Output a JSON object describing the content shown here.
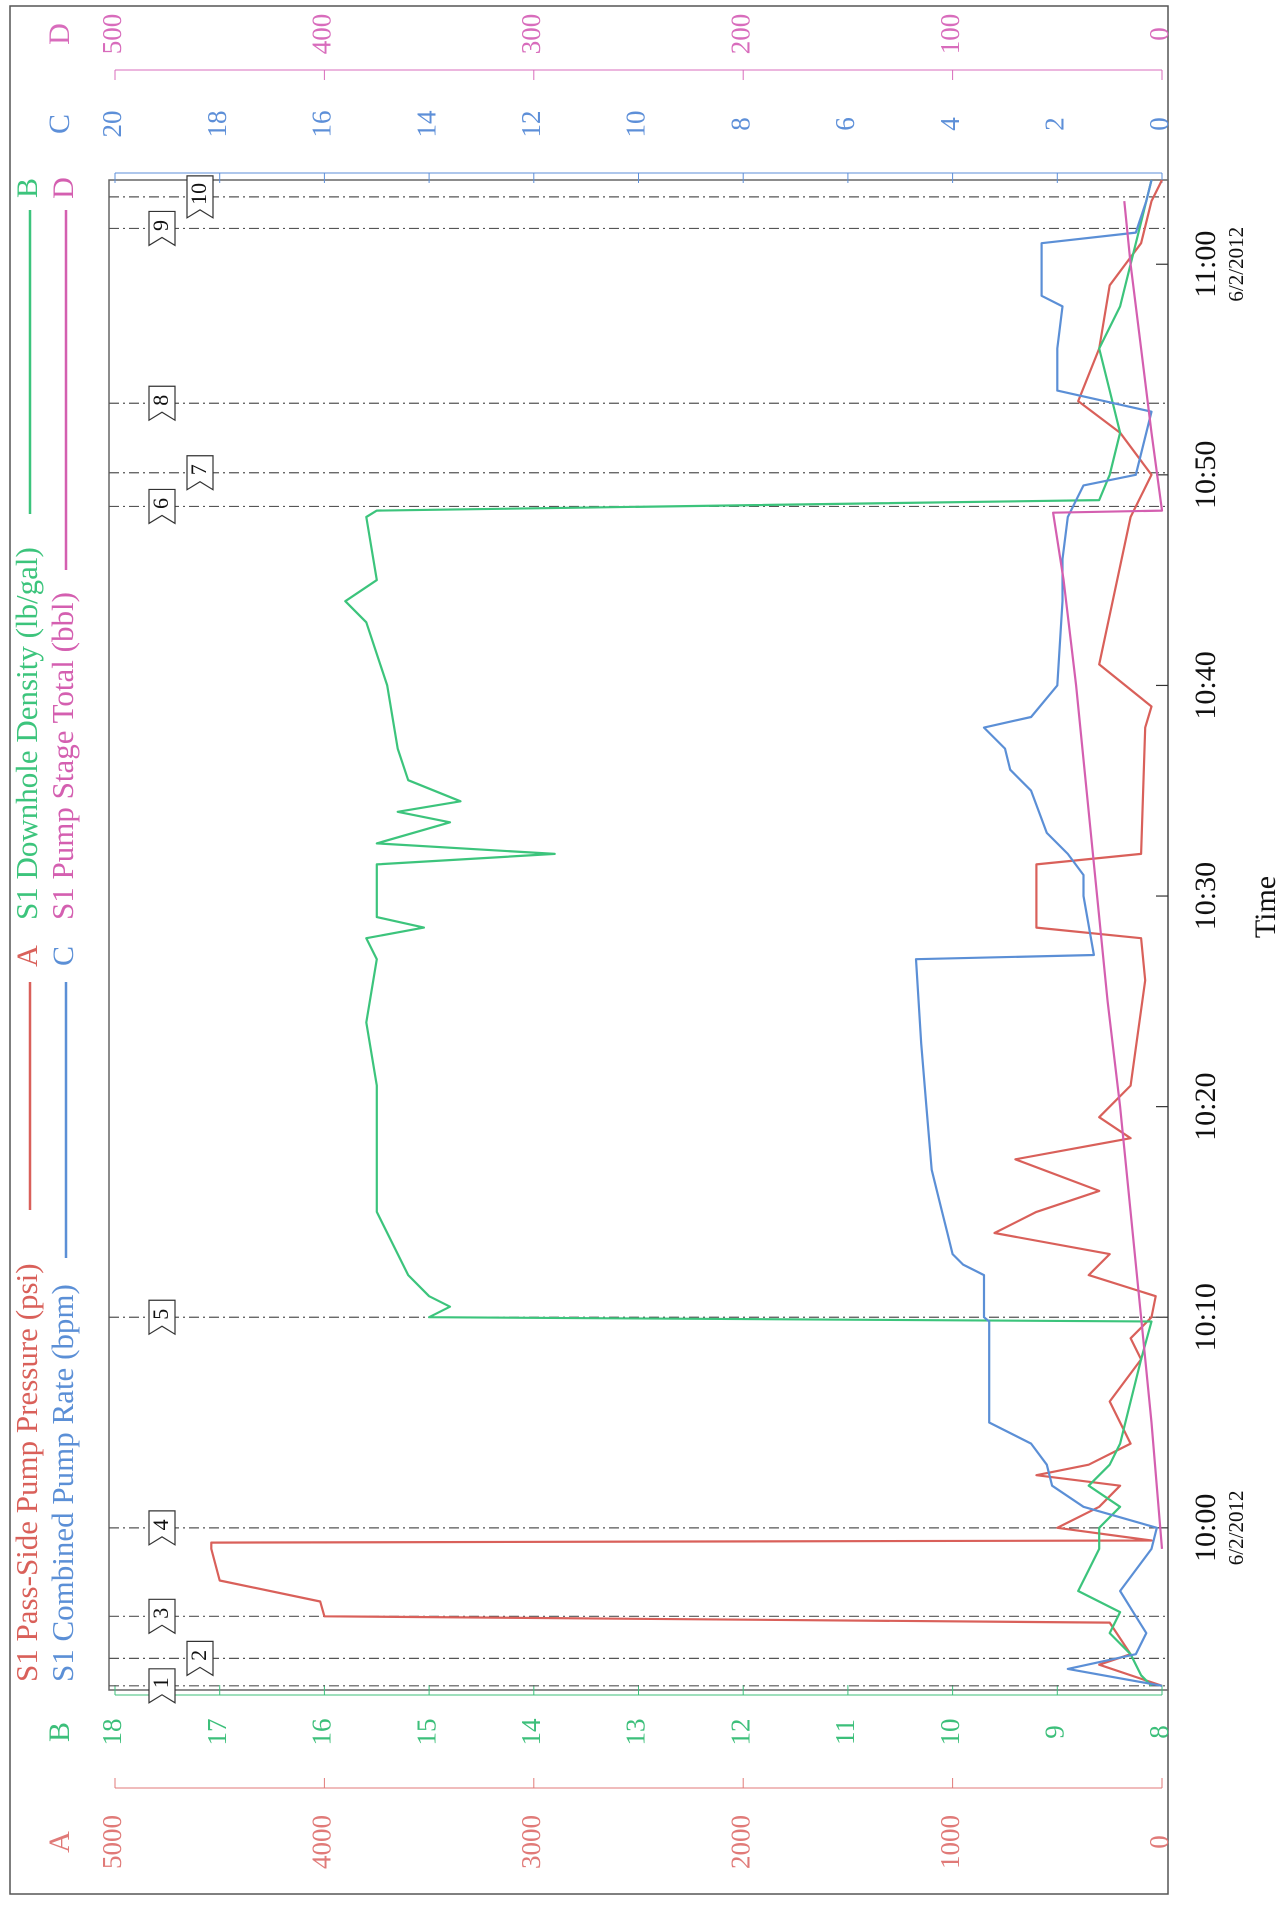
{
  "chart_data": {
    "type": "line",
    "xlabel": "Time",
    "xlim": [
      592.3,
      664.0
    ],
    "xticks": [
      {
        "value": 600,
        "label": "10:00"
      },
      {
        "value": 610,
        "label": "10:10"
      },
      {
        "value": 620,
        "label": "10:20"
      },
      {
        "value": 630,
        "label": "10:30"
      },
      {
        "value": 640,
        "label": "10:40"
      },
      {
        "value": 650,
        "label": "10:50"
      },
      {
        "value": 660,
        "label": "11:00"
      }
    ],
    "xtick_dates": [
      {
        "value": 600,
        "label": "6/2/2012"
      },
      {
        "value": 660,
        "label": "6/2/2012"
      }
    ],
    "axes": [
      {
        "name": "A",
        "color": "#e07a78",
        "lim": [
          0,
          5000
        ],
        "ticks": [
          0,
          1000,
          2000,
          3000,
          4000,
          5000
        ]
      },
      {
        "name": "B",
        "color": "#3cbf7a",
        "lim": [
          8,
          18
        ],
        "ticks": [
          8,
          9,
          10,
          11,
          12,
          13,
          14,
          15,
          16,
          17,
          18
        ]
      },
      {
        "name": "C",
        "color": "#5d8fd8",
        "lim": [
          0,
          20
        ],
        "ticks": [
          0,
          2,
          4,
          6,
          8,
          10,
          12,
          14,
          16,
          18,
          20
        ]
      },
      {
        "name": "D",
        "color": "#d86cbc",
        "lim": [
          0,
          500
        ],
        "ticks": [
          0,
          100,
          200,
          300,
          400,
          500
        ]
      }
    ],
    "series": [
      {
        "name": "S1 Pass-Side Pump Pressure (psi)",
        "axis": "A",
        "color": "#d9605a",
        "x": [
          592.5,
          593.5,
          594,
          595.5,
          595.8,
          596.5,
          597.5,
          599,
          599.3,
          599.4,
          600,
          601,
          602,
          602.5,
          603,
          604,
          606,
          608,
          609,
          610,
          611,
          612,
          613,
          614,
          615,
          616,
          617.5,
          618.5,
          619.5,
          621,
          626,
          628,
          628.5,
          631.5,
          632,
          638,
          639,
          641,
          648,
          650,
          652,
          653.5,
          656,
          659,
          661,
          663,
          664
        ],
        "values": [
          0,
          300,
          150,
          250,
          4000,
          4020,
          4500,
          4540,
          4540,
          50,
          500,
          300,
          200,
          600,
          350,
          150,
          250,
          100,
          150,
          50,
          30,
          350,
          250,
          800,
          600,
          300,
          700,
          150,
          300,
          150,
          80,
          100,
          600,
          600,
          100,
          80,
          50,
          300,
          150,
          50,
          200,
          400,
          300,
          250,
          100,
          50,
          0
        ]
      },
      {
        "name": "S1 Downhole Density (lb/gal)",
        "axis": "B",
        "color": "#3cc47c",
        "x": [
          592.5,
          593,
          594,
          595,
          596,
          597,
          598,
          599,
          600,
          601,
          602,
          603,
          604,
          606,
          608,
          609.8,
          610,
          610.5,
          611,
          612,
          615,
          618,
          621,
          624,
          627,
          628,
          628.5,
          629,
          631.5,
          632,
          632.5,
          633.5,
          634,
          634.5,
          635.5,
          637,
          640,
          643,
          644,
          645,
          648,
          648.3,
          648.8,
          650,
          652,
          654,
          656,
          658,
          660,
          662,
          664
        ],
        "values": [
          8.1,
          8.2,
          8.3,
          8.5,
          8.4,
          8.8,
          8.7,
          8.6,
          8.6,
          8.4,
          8.7,
          8.5,
          8.4,
          8.3,
          8.2,
          8.1,
          15.0,
          14.8,
          15.0,
          15.2,
          15.5,
          15.5,
          15.5,
          15.6,
          15.5,
          15.6,
          15.05,
          15.5,
          15.5,
          13.8,
          15.5,
          14.8,
          15.3,
          14.7,
          15.2,
          15.3,
          15.4,
          15.6,
          15.8,
          15.5,
          15.6,
          15.5,
          8.6,
          8.5,
          8.4,
          8.5,
          8.6,
          8.4,
          8.3,
          8.2,
          8.1
        ]
      },
      {
        "name": "S1 Combined Pump Rate (bpm)",
        "axis": "C",
        "color": "#5b8fd6",
        "x": [
          592.5,
          593.3,
          594,
          595,
          595.8,
          597,
          599,
          600,
          601,
          602,
          603,
          604,
          605,
          609.8,
          610,
          612,
          612.5,
          613,
          614,
          615,
          617,
          620,
          623,
          627,
          627.2,
          630,
          631,
          632,
          633,
          635,
          636,
          637,
          638,
          638.5,
          640,
          644,
          646,
          648,
          649.5,
          650,
          652,
          653,
          654,
          656,
          658,
          658.5,
          661,
          661.5,
          663,
          664
        ],
        "values": [
          0,
          1.8,
          0.5,
          0.3,
          0.5,
          0.8,
          0.2,
          0.1,
          1.5,
          2.1,
          2.2,
          2.5,
          3.3,
          3.3,
          3.4,
          3.4,
          3.8,
          4.0,
          4.1,
          4.2,
          4.4,
          4.5,
          4.6,
          4.7,
          1.3,
          1.5,
          1.5,
          1.8,
          2.2,
          2.5,
          2.9,
          3.0,
          3.4,
          2.5,
          2.0,
          1.9,
          1.9,
          1.8,
          1.5,
          0.5,
          0.3,
          0.2,
          2.0,
          2.0,
          1.9,
          2.3,
          2.3,
          0.5,
          0.3,
          0.2
        ]
      },
      {
        "name": "S1 Pump Stage Total (bbl)",
        "axis": "D",
        "color": "#d45fb0",
        "x": [
          599,
          605,
          610,
          615,
          620,
          625,
          630,
          635,
          640,
          645,
          648.2,
          648.3,
          652,
          656,
          660,
          663
        ],
        "values": [
          0,
          5,
          10,
          15,
          20,
          26,
          31,
          36,
          41,
          47,
          52,
          0,
          5,
          10,
          15,
          18
        ]
      }
    ],
    "markers": [
      {
        "label": "1",
        "x": 592.5
      },
      {
        "label": "2",
        "x": 593.8
      },
      {
        "label": "3",
        "x": 595.8
      },
      {
        "label": "4",
        "x": 600.0
      },
      {
        "label": "5",
        "x": 610.0
      },
      {
        "label": "6",
        "x": 648.5
      },
      {
        "label": "7",
        "x": 650.1
      },
      {
        "label": "8",
        "x": 653.4
      },
      {
        "label": "9",
        "x": 661.7
      },
      {
        "label": "10",
        "x": 663.2
      }
    ]
  }
}
